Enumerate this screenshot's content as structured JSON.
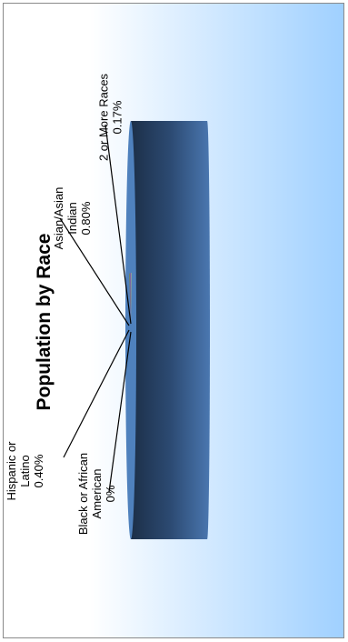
{
  "chart_data": {
    "type": "pie",
    "title": "Population by Race",
    "slices": [
      {
        "label": [
          "Hispanic or",
          "Latino"
        ],
        "value_label": "0.40%",
        "value": 0.4,
        "color": "#6b9b3a"
      },
      {
        "label": [
          "Black or African",
          "American"
        ],
        "value_label": "0%",
        "value": 0.0,
        "color": "#c0504d"
      },
      {
        "label": [
          "Asian/Asian",
          "Indian"
        ],
        "value_label": "0.80%",
        "value": 0.8,
        "color": "#8064a2"
      },
      {
        "label": [
          "2 or More Races"
        ],
        "value_label": "0.17%",
        "value": 0.17,
        "color": "#d7c46b"
      },
      {
        "label": [],
        "value_label": "",
        "value": 98.63,
        "color": "#4f81bd"
      }
    ],
    "legend": "none",
    "orientation": "rotated 90 degrees counter-clockwise"
  },
  "colors": {
    "background_start": "#ffffff",
    "background_end": "#9fd0ff",
    "pie_top": "#4f81bd",
    "pie_side_dark": "#1f3552",
    "border": "#8a8a8a"
  }
}
